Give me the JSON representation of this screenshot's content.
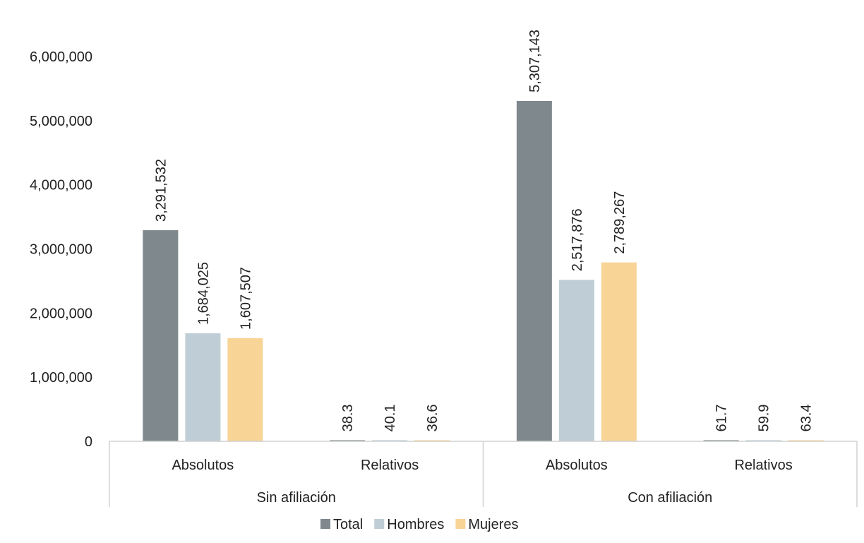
{
  "chart_data": {
    "type": "bar",
    "groups": [
      {
        "label": "Sin afiliación",
        "categories": [
          "Absolutos",
          "Relativos"
        ]
      },
      {
        "label": "Con afiliación",
        "categories": [
          "Absolutos",
          "Relativos"
        ]
      }
    ],
    "series": [
      {
        "name": "Total",
        "color": "#7f888d",
        "values": [
          3291532,
          38.3,
          5307143,
          61.7
        ],
        "labels": [
          "3,291,532",
          "38.3",
          "5,307,143",
          "61.7"
        ]
      },
      {
        "name": "Hombres",
        "color": "#bfced6",
        "values": [
          1684025,
          40.1,
          2517876,
          59.9
        ],
        "labels": [
          "1,684,025",
          "40.1",
          "2,517,876",
          "59.9"
        ]
      },
      {
        "name": "Mujeres",
        "color": "#f8d497",
        "values": [
          1607507,
          36.6,
          2789267,
          63.4
        ],
        "labels": [
          "1,607,507",
          "36.6",
          "2,789,267",
          "63.4"
        ]
      }
    ],
    "yticks": [
      "0",
      "1,000,000",
      "2,000,000",
      "3,000,000",
      "4,000,000",
      "5,000,000",
      "6,000,000"
    ],
    "ylim": [
      0,
      6000000
    ],
    "grid": false,
    "legend_position": "bottom"
  }
}
